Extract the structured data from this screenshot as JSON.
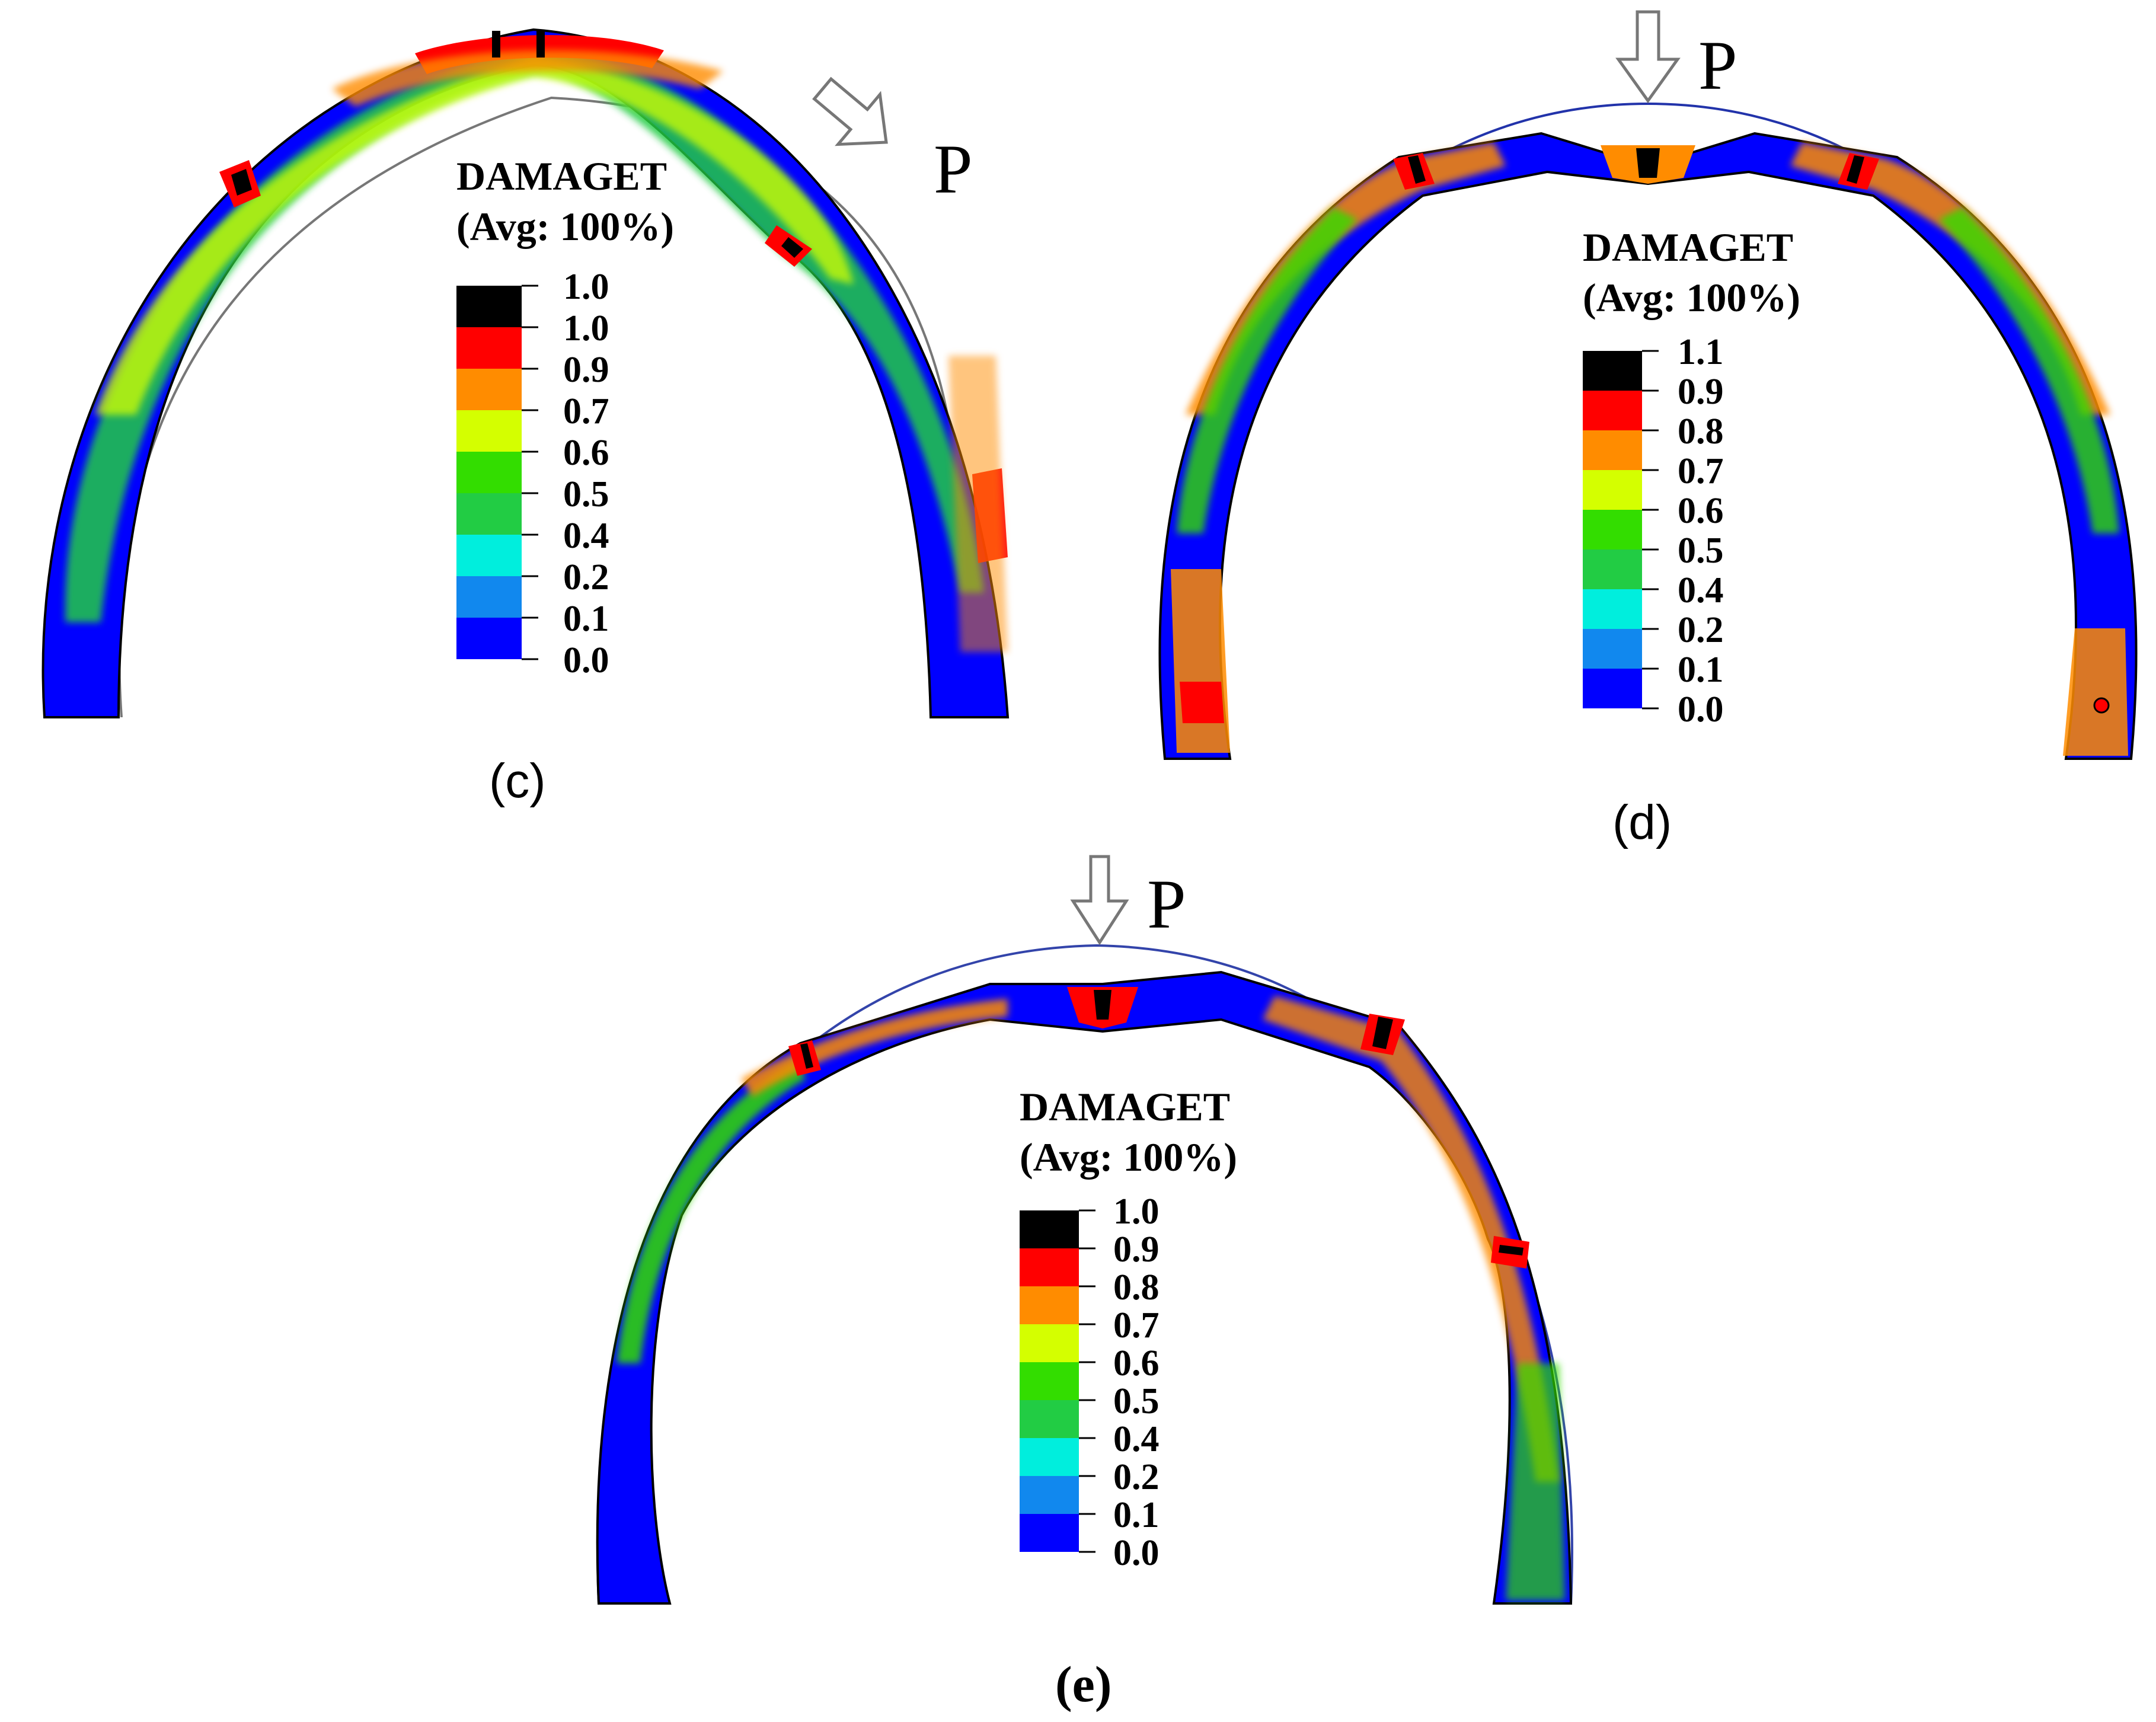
{
  "panels": [
    {
      "id": "c",
      "caption": "(c)",
      "load_label": "P",
      "legend_title": "DAMAGET",
      "legend_subtitle": "(Avg: 100%)",
      "legend_ticks": [
        "1.0",
        "1.0",
        "0.9",
        "0.7",
        "0.6",
        "0.5",
        "0.4",
        "0.2",
        "0.1",
        "0.0"
      ]
    },
    {
      "id": "d",
      "caption": "(d)",
      "load_label": "P",
      "legend_title": "DAMAGET",
      "legend_subtitle": "(Avg: 100%)",
      "legend_ticks": [
        "1.1",
        "0.9",
        "0.8",
        "0.7",
        "0.6",
        "0.5",
        "0.4",
        "0.2",
        "0.1",
        "0.0"
      ]
    },
    {
      "id": "e",
      "caption": "e",
      "load_label": "P",
      "legend_title": "DAMAGET",
      "legend_subtitle": "(Avg: 100%)",
      "legend_ticks": [
        "1.0",
        "0.9",
        "0.8",
        "0.7",
        "0.6",
        "0.5",
        "0.4",
        "0.2",
        "0.1",
        "0.0"
      ]
    }
  ],
  "colormap": [
    "#000000",
    "#ff0000",
    "#ff8c00",
    "#d4ff00",
    "#33dd00",
    "#22cc44",
    "#00eedd",
    "#1188ee",
    "#0000ff"
  ]
}
